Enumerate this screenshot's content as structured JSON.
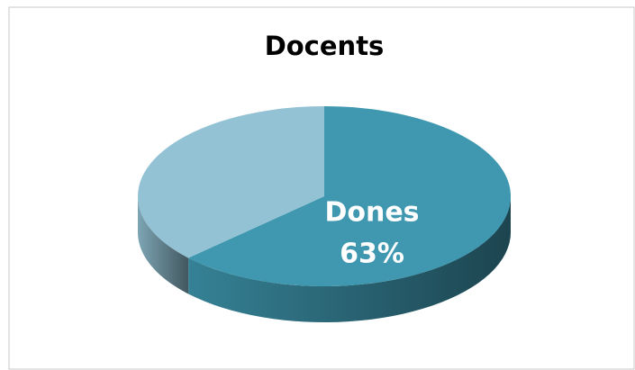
{
  "chart_data": {
    "type": "pie",
    "title": "Docents",
    "categories": [
      "Dones",
      null
    ],
    "values": [
      63,
      37
    ],
    "value_labels": [
      "63%",
      null
    ],
    "colors": [
      "#3f98b0",
      "#93c2d4"
    ]
  }
}
